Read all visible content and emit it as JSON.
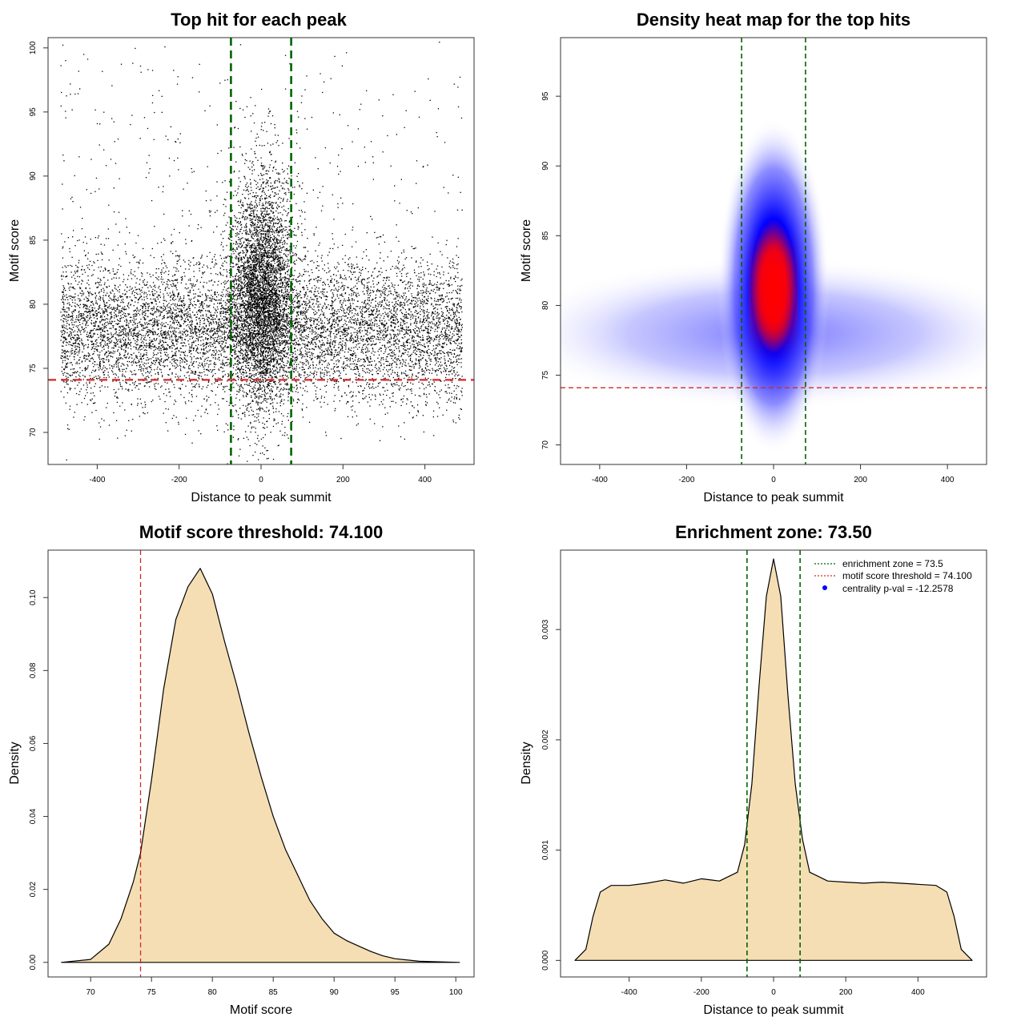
{
  "colors": {
    "threshold": "#d62728",
    "zone": "#006400",
    "fill": "#f5deb3",
    "heat_low": "#0000ff",
    "heat_high": "#ff0000",
    "points": "#000000",
    "legend_dot": "#0000ff"
  },
  "chart_data": [
    {
      "id": "scatter",
      "type": "scatter",
      "title": "Top hit for each peak",
      "xlabel": "Distance to peak summit",
      "ylabel": "Motif score",
      "xlim": [
        -520,
        520
      ],
      "ylim": [
        67.5,
        100.8
      ],
      "xticks": [
        -400,
        -200,
        0,
        200,
        400
      ],
      "yticks": [
        70,
        75,
        80,
        85,
        90,
        95,
        100
      ],
      "threshold_y": 74.1,
      "zone_x": [
        -73.5,
        73.5
      ],
      "background": {
        "x_range": [
          -490,
          490
        ],
        "score_mean": 78.0,
        "score_sd": 2.8
      },
      "central": {
        "x_sd": 40,
        "score_mean": 81.0,
        "score_sd": 4.5
      },
      "grid": false
    },
    {
      "id": "heatmap",
      "type": "heatmap",
      "title": "Density heat map for the top hits",
      "xlabel": "Distance to peak summit",
      "ylabel": "Motif score",
      "xlim": [
        -490,
        490
      ],
      "ylim": [
        68.6,
        99.2
      ],
      "xticks": [
        -400,
        -200,
        0,
        200,
        400
      ],
      "yticks": [
        70,
        75,
        80,
        85,
        90,
        95
      ],
      "threshold_y": 74.1,
      "zone_x": [
        -73.5,
        73.5
      ],
      "background_peak": {
        "score": 78.0
      },
      "central_peak": {
        "x": 0,
        "score": 80.8
      },
      "grid": false
    },
    {
      "id": "score_density",
      "type": "area",
      "title": "Motif score threshold: 74.100",
      "xlabel": "Motif score",
      "ylabel": "Density",
      "xlim": [
        66.5,
        101.5
      ],
      "ylim": [
        -0.004,
        0.113
      ],
      "xticks": [
        70,
        75,
        80,
        85,
        90,
        95,
        100
      ],
      "yticks": [
        0.0,
        0.02,
        0.04,
        0.06,
        0.08,
        0.1
      ],
      "ytick_labels": [
        "0.00",
        "0.02",
        "0.04",
        "0.06",
        "0.08",
        "0.10"
      ],
      "threshold_x": 74.1,
      "x": [
        67.6,
        70,
        71.5,
        72.5,
        73.5,
        74.1,
        75,
        76,
        77,
        78,
        79,
        80,
        81,
        82,
        83,
        84,
        85,
        86,
        87,
        88,
        89,
        90,
        91,
        92,
        93,
        94,
        95,
        97,
        100.3
      ],
      "y": [
        0.0,
        0.0008,
        0.005,
        0.012,
        0.022,
        0.03,
        0.05,
        0.075,
        0.094,
        0.103,
        0.108,
        0.101,
        0.088,
        0.076,
        0.063,
        0.051,
        0.04,
        0.031,
        0.024,
        0.017,
        0.012,
        0.008,
        0.006,
        0.0045,
        0.003,
        0.0018,
        0.001,
        0.0003,
        0.0
      ],
      "grid": false
    },
    {
      "id": "distance_density",
      "type": "area",
      "title": "Enrichment zone: 73.50",
      "xlabel": "Distance to peak summit",
      "ylabel": "Density",
      "xlim": [
        -590,
        590
      ],
      "ylim": [
        -0.00015,
        0.00372
      ],
      "xticks": [
        -400,
        -200,
        0,
        200,
        400
      ],
      "yticks": [
        0.0,
        0.001,
        0.002,
        0.003
      ],
      "ytick_labels": [
        "0.000",
        "0.001",
        "0.002",
        "0.003"
      ],
      "zone_x": [
        -73.5,
        73.5
      ],
      "x": [
        -550,
        -520,
        -500,
        -480,
        -450,
        -400,
        -350,
        -300,
        -250,
        -200,
        -150,
        -100,
        -80,
        -60,
        -40,
        -20,
        0,
        20,
        40,
        60,
        80,
        100,
        150,
        200,
        250,
        300,
        350,
        400,
        450,
        480,
        500,
        520,
        550
      ],
      "y": [
        0.0,
        0.0001,
        0.0004,
        0.00062,
        0.00068,
        0.00068,
        0.0007,
        0.00073,
        0.0007,
        0.00074,
        0.00072,
        0.0008,
        0.00105,
        0.0016,
        0.0025,
        0.0033,
        0.00364,
        0.0033,
        0.0024,
        0.0016,
        0.0011,
        0.0008,
        0.00072,
        0.00071,
        0.0007,
        0.00071,
        0.0007,
        0.00069,
        0.00068,
        0.00062,
        0.0004,
        0.0001,
        0.0
      ],
      "legend": {
        "position": "top-right",
        "entries": [
          {
            "label": "enrichment zone = 73.5",
            "style": "dotted-line",
            "color": "#006400"
          },
          {
            "label": "motif score threshold = 74.100",
            "style": "dotted-line",
            "color": "#d62728"
          },
          {
            "label": "centrality p-val = -12.2578",
            "style": "dot",
            "color": "#0000ff"
          }
        ]
      },
      "grid": false
    }
  ]
}
